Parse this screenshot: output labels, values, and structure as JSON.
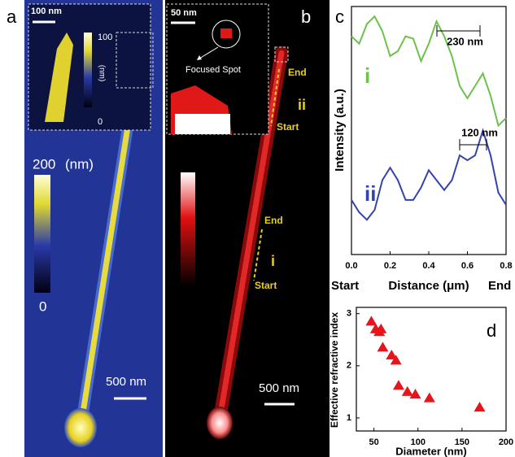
{
  "panels": {
    "a": {
      "label": "a",
      "inset_scale": "100 nm",
      "inset_bar_max": "100",
      "inset_bar_unit": "(nm)",
      "inset_bar_min": "0",
      "bar_max": "200",
      "bar_unit": "(nm)",
      "bar_min": "0",
      "scale": "500 nm"
    },
    "b": {
      "label": "b",
      "inset_scale": "50 nm",
      "focused": "Focused Spot",
      "end_ii": "End",
      "mark_ii": "ii",
      "start_ii": "Start",
      "end_i": "End",
      "mark_i": "i",
      "start_i": "Start",
      "scale": "500 nm"
    }
  },
  "chart_data": [
    {
      "type": "line",
      "panel": "c",
      "y_label": "Intensity (a.u.)",
      "x_label": "Distance (μm)",
      "x_start": "Start",
      "x_end": "End",
      "annotations": [
        "230 nm",
        "120 nm"
      ],
      "x": [
        0,
        0.04,
        0.08,
        0.12,
        0.16,
        0.2,
        0.24,
        0.28,
        0.32,
        0.36,
        0.4,
        0.44,
        0.48,
        0.52,
        0.56,
        0.6,
        0.64,
        0.68,
        0.72,
        0.76,
        0.8
      ],
      "series": [
        {
          "name": "i",
          "color": "#6cc24a",
          "values": [
            0.88,
            0.85,
            0.93,
            0.96,
            0.9,
            0.8,
            0.82,
            0.88,
            0.87,
            0.78,
            0.85,
            0.94,
            0.88,
            0.8,
            0.68,
            0.63,
            0.68,
            0.73,
            0.64,
            0.52,
            0.55
          ]
        },
        {
          "name": "ii",
          "color": "#3344aa",
          "values": [
            0.22,
            0.17,
            0.14,
            0.18,
            0.3,
            0.35,
            0.3,
            0.22,
            0.22,
            0.27,
            0.34,
            0.3,
            0.26,
            0.3,
            0.4,
            0.38,
            0.4,
            0.5,
            0.4,
            0.25,
            0.2
          ]
        }
      ],
      "xlim": [
        0,
        0.8
      ],
      "xticks": [
        {
          "value": 0,
          "label": "0.0"
        },
        0.2,
        0.4,
        0.6,
        0.8
      ],
      "ylim": [
        0,
        1
      ]
    },
    {
      "type": "scatter",
      "panel": "d",
      "y_label": "Effective refractive index",
      "x_label": "Diameter (nm)",
      "color": "#e8141c",
      "x": [
        47,
        52,
        56,
        58,
        60,
        70,
        75,
        78,
        88,
        97,
        113,
        170
      ],
      "values": [
        2.85,
        2.7,
        2.65,
        2.7,
        2.35,
        2.2,
        2.1,
        1.62,
        1.5,
        1.45,
        1.38,
        1.2
      ],
      "xlim": [
        30,
        200
      ],
      "xticks": [
        50,
        100,
        150,
        200
      ],
      "ylim": [
        0.75,
        3.12
      ],
      "yticks": [
        1,
        2,
        3
      ]
    }
  ]
}
